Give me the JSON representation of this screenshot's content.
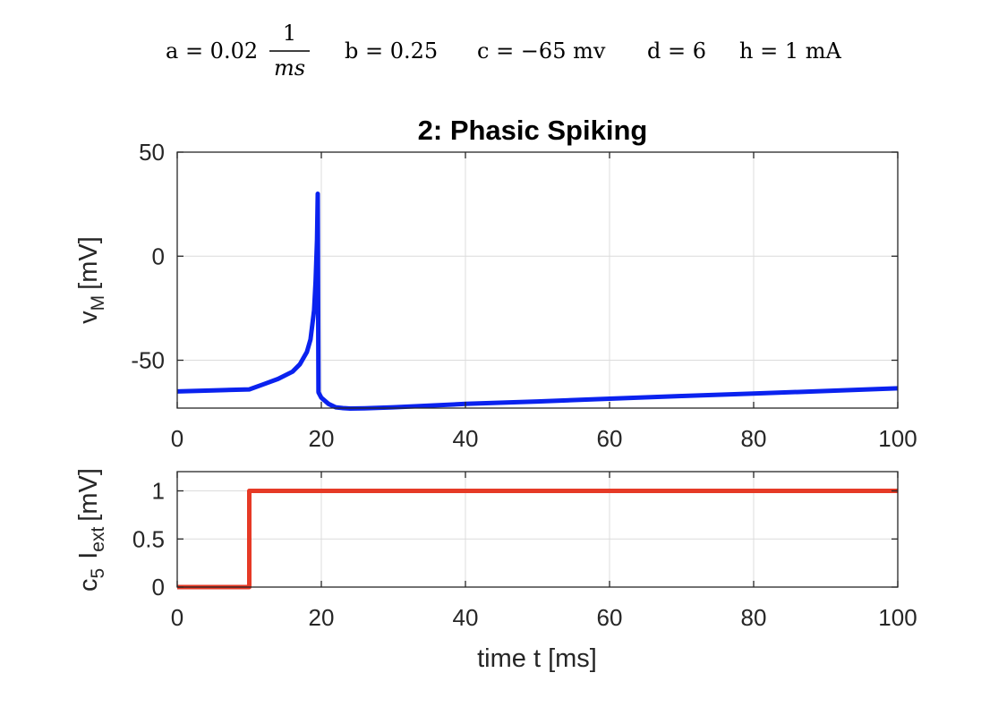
{
  "equation": {
    "a_lhs": "a = 0.02",
    "a_num": "1",
    "a_den": "ms",
    "b": "b = 0.25",
    "c": "c = −65 mv",
    "d": "d = 6",
    "h": "h = 1 mA"
  },
  "chart_data": [
    {
      "type": "line",
      "title": "2: Phasic Spiking",
      "xlabel": "",
      "ylabel_main": "v",
      "ylabel_sub": "M",
      "ylabel_unit": "[mV]",
      "xlim": [
        0,
        100
      ],
      "ylim": [
        -73,
        50
      ],
      "xticks": [
        0,
        20,
        40,
        60,
        80,
        100
      ],
      "xtick_labels": [
        "0",
        "20",
        "40",
        "60",
        "80",
        "100"
      ],
      "yticks": [
        50,
        0,
        -50
      ],
      "ytick_labels": [
        "50",
        "0",
        "-50"
      ],
      "grid": true,
      "color": "#0a22ef",
      "series": [
        {
          "x": [
            0,
            5,
            10,
            12,
            14,
            16,
            17,
            18,
            18.5,
            19,
            19.2,
            19.4,
            19.5,
            19.6,
            19.62,
            20,
            21,
            22,
            23,
            24,
            26,
            30,
            40,
            50,
            60,
            70,
            80,
            90,
            100
          ],
          "y": [
            -65,
            -64.5,
            -64,
            -61.5,
            -59,
            -55.5,
            -52,
            -46,
            -40,
            -26,
            -12,
            8,
            30,
            -65,
            -65.5,
            -68,
            -71,
            -72.6,
            -73,
            -73.2,
            -73.1,
            -72.6,
            -71,
            -69.8,
            -68.5,
            -67.2,
            -66,
            -64.8,
            -63.5
          ]
        }
      ]
    },
    {
      "type": "line",
      "title": "",
      "xlabel": "time t [ms]",
      "ylabel_c": "c",
      "ylabel_c_sub": "5",
      "ylabel_I": "I",
      "ylabel_I_sub": "ext",
      "ylabel_unit": "[mV]",
      "xlim": [
        0,
        100
      ],
      "ylim": [
        0,
        1.2
      ],
      "xticks": [
        0,
        20,
        40,
        60,
        80,
        100
      ],
      "xtick_labels": [
        "0",
        "20",
        "40",
        "60",
        "80",
        "100"
      ],
      "yticks": [
        1,
        0.5,
        0
      ],
      "ytick_labels": [
        "1",
        "0.5",
        "0"
      ],
      "grid": true,
      "color": "#e63a26",
      "series": [
        {
          "x": [
            0,
            10,
            10,
            100
          ],
          "y": [
            0,
            0,
            1,
            1
          ]
        }
      ]
    }
  ]
}
